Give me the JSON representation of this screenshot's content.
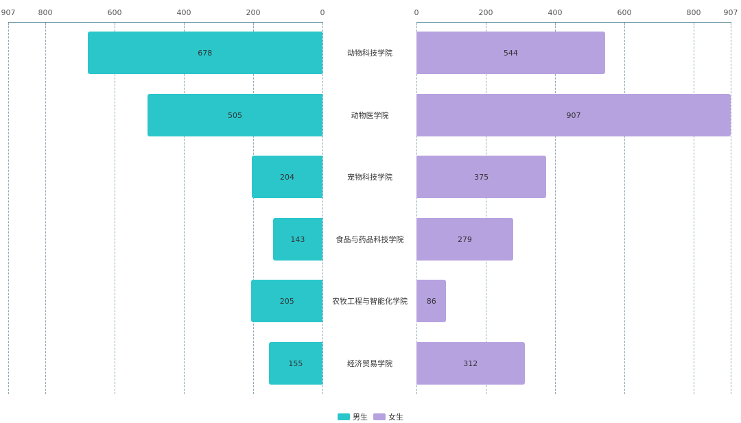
{
  "chart_data": {
    "type": "bar",
    "orientation": "horizontal-butterfly",
    "title": "",
    "categories": [
      "动物科技学院",
      "动物医学院",
      "宠物科技学院",
      "食品与药品科技学院",
      "农牧工程与智能化学院",
      "经济贸易学院"
    ],
    "series": [
      {
        "name": "男生",
        "color": "#2ac6ca",
        "side": "left",
        "values": [
          678,
          505,
          204,
          143,
          205,
          155
        ]
      },
      {
        "name": "女生",
        "color": "#b7a2e0",
        "side": "right",
        "values": [
          544,
          907,
          375,
          279,
          86,
          312
        ]
      }
    ],
    "left_axis": {
      "ticks": [
        907,
        800,
        600,
        400,
        200,
        0
      ],
      "range": [
        0,
        907
      ],
      "inverse": true
    },
    "right_axis": {
      "ticks": [
        0,
        200,
        400,
        600,
        800,
        907
      ],
      "range": [
        0,
        907
      ]
    },
    "grid": true,
    "legend_position": "bottom-center",
    "xlabel": "",
    "ylabel": ""
  },
  "legend": [
    {
      "label": "男生",
      "color": "#2ac6ca"
    },
    {
      "label": "女生",
      "color": "#b7a2e0"
    }
  ]
}
